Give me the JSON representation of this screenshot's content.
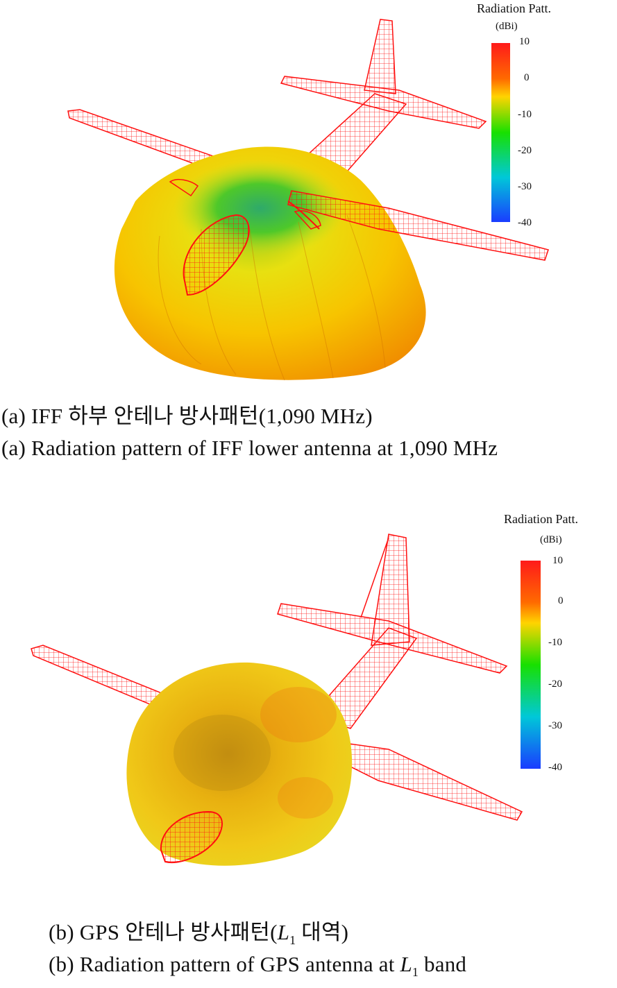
{
  "panels": [
    {
      "legend": {
        "title": "Radiation Patt.",
        "unit": "(dBi)",
        "ticks": [
          "10",
          "0",
          "-10",
          "-20",
          "-30",
          "-40"
        ],
        "colors": [
          "#ff1a1a",
          "#ff6a00",
          "#ffd400",
          "#18e000",
          "#00c8d8",
          "#1a3cff"
        ]
      },
      "caption_ko": "(a) IFF 하부 안테나 방사패턴(1,090 MHz)",
      "caption_en": "(a) Radiation pattern of IFF lower antenna at 1,090 MHz"
    },
    {
      "legend": {
        "title": "Radiation Patt.",
        "unit": "(dBi)",
        "ticks": [
          "10",
          "0",
          "-10",
          "-20",
          "-30",
          "-40"
        ],
        "colors": [
          "#ff1a1a",
          "#ff6a00",
          "#ffd400",
          "#18e000",
          "#00c8d8",
          "#1a3cff"
        ]
      },
      "caption_ko_pre": "(b) GPS 안테나 방사패턴(",
      "caption_ko_var": "L",
      "caption_ko_sub": "1",
      "caption_ko_post": " 대역)",
      "caption_en_pre": "(b) Radiation pattern of GPS antenna at ",
      "caption_en_var": "L",
      "caption_en_sub": "1",
      "caption_en_post": " band"
    }
  ],
  "wireframe_color": "#ff1010"
}
